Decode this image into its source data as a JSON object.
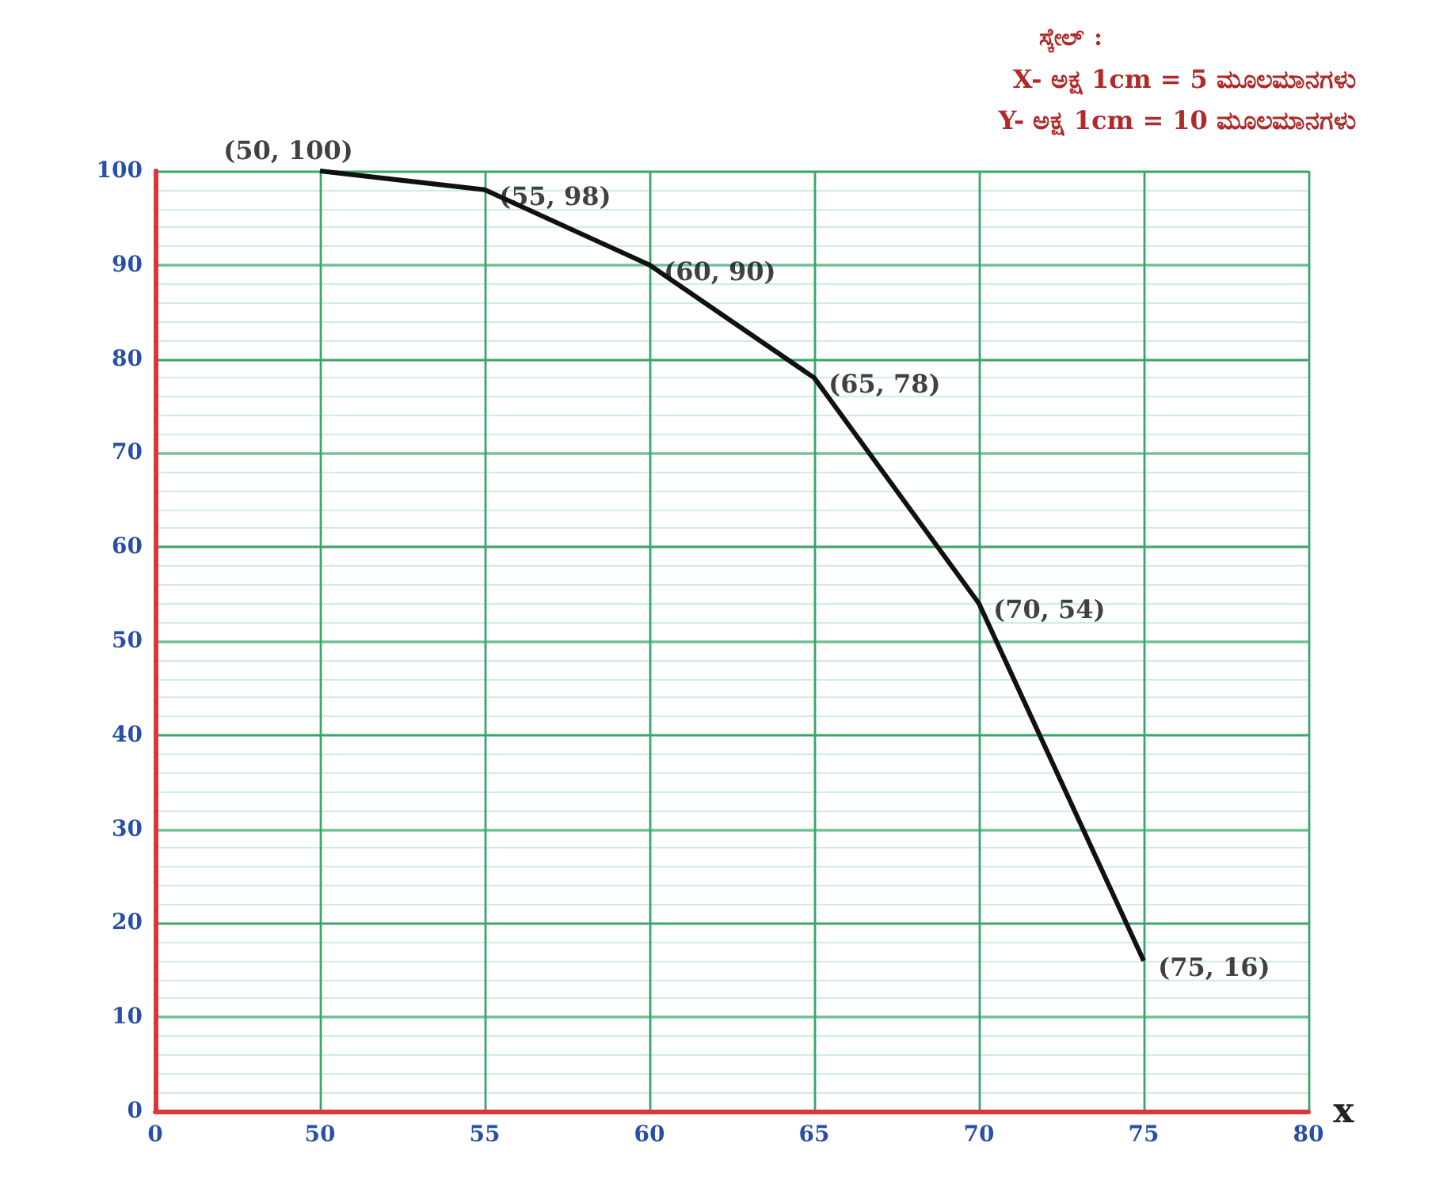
{
  "chart_data": {
    "type": "line",
    "title": "ಸ್ಕೇಲ್ :",
    "xlabel": "x",
    "categories": [
      "0",
      "50",
      "55",
      "60",
      "65",
      "70",
      "75",
      "80"
    ],
    "series": [
      {
        "color": "#111111",
        "values": [
          null,
          100,
          98,
          90,
          78,
          54,
          16,
          null
        ]
      }
    ],
    "ylim": [
      0,
      100
    ],
    "yticks": [
      0,
      10,
      20,
      30,
      40,
      50,
      60,
      70,
      80,
      90,
      100
    ],
    "grid": true,
    "marker": "none",
    "line_style": "solid",
    "annotations": [
      {
        "text": "(50, 100)",
        "x": "50",
        "y": 100
      },
      {
        "text": "(55, 98)",
        "x": "55",
        "y": 98
      },
      {
        "text": "(60, 90)",
        "x": "60",
        "y": 90
      },
      {
        "text": "(65, 78)",
        "x": "65",
        "y": 78
      },
      {
        "text": "(70, 54)",
        "x": "70",
        "y": 54
      },
      {
        "text": "(75, 16)",
        "x": "75",
        "y": 16
      },
      "X- ಅಕ್ಷ 1cm = 5 ಮೂಲಮಾನಗಳು",
      "Y- ಅಕ್ಷ 1cm = 10 ಮೂಲಮಾನಗಳು"
    ]
  }
}
